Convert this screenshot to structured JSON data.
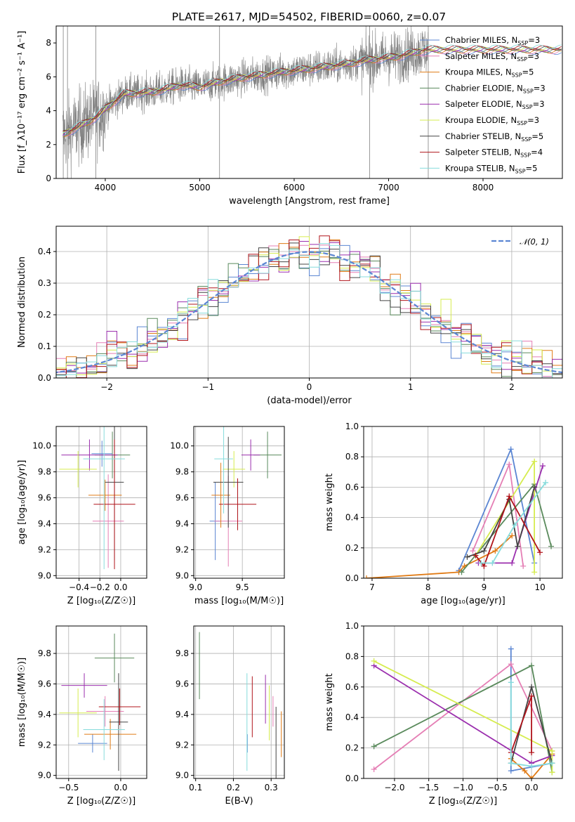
{
  "figure_title": "PLATE=2617, MJD=54502, FIBERID=0060, z=0.07",
  "models": [
    {
      "name": "Chabrier MILES",
      "nssp": "3",
      "color": "#5b86d3"
    },
    {
      "name": "Salpeter MILES",
      "nssp": "3",
      "color": "#e57fb5"
    },
    {
      "name": "Kroupa MILES",
      "nssp": "5",
      "color": "#e07b16"
    },
    {
      "name": "Chabrier ELODIE",
      "nssp": "3",
      "color": "#5a8a5c"
    },
    {
      "name": "Salpeter ELODIE",
      "nssp": "3",
      "color": "#9b2fae"
    },
    {
      "name": "Kroupa ELODIE",
      "nssp": "3",
      "color": "#d6ec4f"
    },
    {
      "name": "Chabrier STELIB",
      "nssp": "5",
      "color": "#444444"
    },
    {
      "name": "Salpeter STELIB",
      "nssp": "4",
      "color": "#b0141b"
    },
    {
      "name": "Kroupa STELIB",
      "nssp": "5",
      "color": "#86dcdc"
    }
  ],
  "chart_data": [
    {
      "id": "spectrum",
      "type": "line",
      "xlabel": "wavelength [Angstrom, rest frame]",
      "ylabel": "Flux [f_λ10⁻¹⁷ erg cm⁻² s⁻¹ A⁻¹]",
      "xlim": [
        3480,
        8840
      ],
      "ylim": [
        0,
        9
      ],
      "xticks": [
        4000,
        5000,
        6000,
        7000,
        8000
      ],
      "yticks": [
        0,
        2,
        4,
        6,
        8
      ],
      "observed_color": "#808080",
      "continuum": [
        [
          3550,
          2.6
        ],
        [
          3700,
          3.0
        ],
        [
          3900,
          3.6
        ],
        [
          4000,
          4.1
        ],
        [
          4200,
          5.0
        ],
        [
          4500,
          5.1
        ],
        [
          4800,
          5.5
        ],
        [
          5000,
          5.4
        ],
        [
          5200,
          5.7
        ],
        [
          5500,
          6.0
        ],
        [
          5900,
          6.3
        ],
        [
          6200,
          6.5
        ],
        [
          6500,
          6.7
        ],
        [
          6800,
          7.0
        ],
        [
          7100,
          7.2
        ],
        [
          7400,
          7.6
        ]
      ],
      "grid": false,
      "legend_loc": "right"
    },
    {
      "id": "residuals",
      "type": "histogram",
      "xlabel": "(data-model)/error",
      "ylabel": "Normed distribution",
      "xlim": [
        -2.5,
        2.5
      ],
      "ylim": [
        0,
        0.48
      ],
      "xticks": [
        -2,
        -1,
        0,
        1,
        2
      ],
      "yticks": [
        0.0,
        0.1,
        0.2,
        0.3,
        0.4
      ],
      "gaussian_label": "𝒩(0, 1)",
      "gaussian_color": "#5b86d3",
      "bin_width": 0.1,
      "grid": true,
      "legend_loc": "upper-right"
    },
    {
      "id": "age_vs_Z",
      "type": "errorbar",
      "xlabel": "Z [log₁₀(Z/Z☉)]",
      "ylabel": "age  [log₁₀(age/yr)]",
      "xlim": [
        -0.62,
        0.25
      ],
      "ylim": [
        8.98,
        10.15
      ],
      "xticks": [
        -0.4,
        -0.2,
        0.0
      ],
      "yticks": [
        9.0,
        9.2,
        9.4,
        9.6,
        9.8,
        10.0
      ],
      "points": [
        {
          "model": 0,
          "x": -0.18,
          "xerr": 0.1,
          "y": 9.94,
          "yerr": 0.1
        },
        {
          "model": 1,
          "x": -0.12,
          "xerr": 0.15,
          "y": 9.42,
          "yerr": 0.36
        },
        {
          "model": 2,
          "x": -0.15,
          "xerr": 0.16,
          "y": 9.62,
          "yerr": 0.12
        },
        {
          "model": 3,
          "x": -0.08,
          "xerr": 0.17,
          "y": 9.93,
          "yerr": 0.18
        },
        {
          "model": 4,
          "x": -0.3,
          "xerr": 0.27,
          "y": 9.93,
          "yerr": 0.12
        },
        {
          "model": 5,
          "x": -0.41,
          "xerr": 0.18,
          "y": 9.82,
          "yerr": 0.14
        },
        {
          "model": 6,
          "x": -0.06,
          "xerr": 0.09,
          "y": 9.72,
          "yerr": 0.6
        },
        {
          "model": 7,
          "x": -0.06,
          "xerr": 0.2,
          "y": 9.55,
          "yerr": 0.5
        },
        {
          "model": 8,
          "x": -0.16,
          "xerr": 0.2,
          "y": 9.9,
          "yerr": 0.85
        }
      ],
      "grid": true
    },
    {
      "id": "age_vs_mass",
      "type": "errorbar",
      "xlabel": "mass [log₁₀(M/M☉)]",
      "ylabel": "",
      "xlim": [
        8.98,
        9.95
      ],
      "ylim": [
        8.98,
        10.15
      ],
      "xticks": [
        9.0,
        9.5
      ],
      "yticks": [
        9.0,
        9.2,
        9.4,
        9.6,
        9.8,
        10.0
      ],
      "points": [
        {
          "model": 0,
          "x": 9.21,
          "xerr": 0.06,
          "y": 9.42,
          "yerr": 0.3
        },
        {
          "model": 1,
          "x": 9.35,
          "xerr": 0.15,
          "y": 9.42,
          "yerr": 0.35
        },
        {
          "model": 2,
          "x": 9.27,
          "xerr": 0.1,
          "y": 9.62,
          "yerr": 0.25
        },
        {
          "model": 3,
          "x": 9.77,
          "xerr": 0.15,
          "y": 9.93,
          "yerr": 0.18
        },
        {
          "model": 4,
          "x": 9.59,
          "xerr": 0.1,
          "y": 9.93,
          "yerr": 0.12
        },
        {
          "model": 5,
          "x": 9.41,
          "xerr": 0.12,
          "y": 9.82,
          "yerr": 0.14
        },
        {
          "model": 6,
          "x": 9.35,
          "xerr": 0.16,
          "y": 9.72,
          "yerr": 0.35
        },
        {
          "model": 7,
          "x": 9.45,
          "xerr": 0.2,
          "y": 9.55,
          "yerr": 0.2
        },
        {
          "model": 8,
          "x": 9.3,
          "xerr": 0.1,
          "y": 9.9,
          "yerr": 0.42
        }
      ],
      "grid": true
    },
    {
      "id": "weight_vs_age",
      "type": "line",
      "xlabel": "age  [log₁₀(age/yr)]",
      "ylabel": "mass weight",
      "xlim": [
        6.85,
        10.4
      ],
      "ylim": [
        0,
        1
      ],
      "xticks": [
        7,
        8,
        9,
        10
      ],
      "yticks": [
        0.0,
        0.2,
        0.4,
        0.6,
        0.8,
        1.0
      ],
      "series": [
        {
          "model": 0,
          "points": [
            [
              8.55,
              0.05
            ],
            [
              9.48,
              0.85
            ],
            [
              9.9,
              0.1
            ]
          ]
        },
        {
          "model": 1,
          "points": [
            [
              8.8,
              0.18
            ],
            [
              9.45,
              0.75
            ],
            [
              9.7,
              0.08
            ]
          ]
        },
        {
          "model": 2,
          "points": [
            [
              6.9,
              0.0
            ],
            [
              8.55,
              0.04
            ],
            [
              8.65,
              0.08
            ],
            [
              9.2,
              0.18
            ],
            [
              9.5,
              0.28
            ]
          ]
        },
        {
          "model": 3,
          "points": [
            [
              8.6,
              0.04
            ],
            [
              9.9,
              0.62
            ],
            [
              10.2,
              0.21
            ]
          ]
        },
        {
          "model": 4,
          "points": [
            [
              8.9,
              0.1
            ],
            [
              9.5,
              0.1
            ],
            [
              10.05,
              0.74
            ]
          ]
        },
        {
          "model": 5,
          "points": [
            [
              8.85,
              0.15
            ],
            [
              9.9,
              0.77
            ],
            [
              9.9,
              0.04
            ]
          ]
        },
        {
          "model": 6,
          "points": [
            [
              8.7,
              0.14
            ],
            [
              9.0,
              0.18
            ],
            [
              9.45,
              0.52
            ],
            [
              9.6,
              0.21
            ],
            [
              9.9,
              0.6
            ]
          ]
        },
        {
          "model": 7,
          "points": [
            [
              8.85,
              0.15
            ],
            [
              9.0,
              0.08
            ],
            [
              9.45,
              0.54
            ],
            [
              10.0,
              0.17
            ]
          ]
        },
        {
          "model": 8,
          "points": [
            [
              8.95,
              0.1
            ],
            [
              9.15,
              0.1
            ],
            [
              9.55,
              0.35
            ],
            [
              10.1,
              0.63
            ]
          ]
        }
      ],
      "grid": true
    },
    {
      "id": "mass_vs_Z",
      "type": "errorbar",
      "xlabel": "Z [log₁₀(Z/Z☉)]",
      "ylabel": "mass [log₁₀(M/M☉)]",
      "xlim": [
        -0.62,
        0.25
      ],
      "ylim": [
        8.98,
        9.98
      ],
      "xticks": [
        -0.5,
        0.0
      ],
      "yticks": [
        9.0,
        9.2,
        9.4,
        9.6,
        9.8
      ],
      "points": [
        {
          "model": 0,
          "x": -0.27,
          "xerr": 0.14,
          "y": 9.21,
          "yerr": 0.06
        },
        {
          "model": 1,
          "x": -0.15,
          "xerr": 0.18,
          "y": 9.42,
          "yerr": 0.1
        },
        {
          "model": 2,
          "x": -0.1,
          "xerr": 0.25,
          "y": 9.27,
          "yerr": 0.1
        },
        {
          "model": 3,
          "x": -0.06,
          "xerr": 0.19,
          "y": 9.77,
          "yerr": 0.16
        },
        {
          "model": 4,
          "x": -0.35,
          "xerr": 0.22,
          "y": 9.59,
          "yerr": 0.08
        },
        {
          "model": 5,
          "x": -0.41,
          "xerr": 0.18,
          "y": 9.41,
          "yerr": 0.16
        },
        {
          "model": 6,
          "x": -0.02,
          "xerr": 0.09,
          "y": 9.35,
          "yerr": 0.32
        },
        {
          "model": 7,
          "x": -0.01,
          "xerr": 0.2,
          "y": 9.45,
          "yerr": 0.12
        },
        {
          "model": 8,
          "x": -0.16,
          "xerr": 0.2,
          "y": 9.3,
          "yerr": 0.2
        }
      ],
      "grid": true
    },
    {
      "id": "mass_vs_ebv",
      "type": "errorbar",
      "xlabel": "E(B-V)",
      "ylabel": "",
      "xlim": [
        0.095,
        0.335
      ],
      "ylim": [
        8.98,
        9.98
      ],
      "xticks": [
        0.1,
        0.2,
        0.3
      ],
      "yticks": [
        9.0,
        9.2,
        9.4,
        9.6,
        9.8
      ],
      "points": [
        {
          "model": 0,
          "x": 0.237,
          "y": 9.21,
          "yerr": 0.06
        },
        {
          "model": 1,
          "x": 0.305,
          "y": 9.42,
          "yerr": 0.1
        },
        {
          "model": 2,
          "x": 0.327,
          "y": 9.27,
          "yerr": 0.15
        },
        {
          "model": 3,
          "x": 0.11,
          "y": 9.72,
          "yerr": 0.22
        },
        {
          "model": 4,
          "x": 0.285,
          "y": 9.5,
          "yerr": 0.16
        },
        {
          "model": 5,
          "x": 0.295,
          "y": 9.41,
          "yerr": 0.18
        },
        {
          "model": 6,
          "x": 0.313,
          "y": 9.2,
          "yerr": 0.25
        },
        {
          "model": 7,
          "x": 0.25,
          "y": 9.45,
          "yerr": 0.2
        },
        {
          "model": 8,
          "x": 0.236,
          "y": 9.35,
          "yerr": 0.32
        }
      ],
      "grid": true
    },
    {
      "id": "weight_vs_Z",
      "type": "line",
      "xlabel": "Z [log₁₀(Z/Z☉)]",
      "ylabel": "mass weight",
      "xlim": [
        -2.45,
        0.45
      ],
      "ylim": [
        0,
        1
      ],
      "xticks": [
        -2.0,
        -1.5,
        -1.0,
        -0.5,
        0.0
      ],
      "yticks": [
        0.0,
        0.2,
        0.4,
        0.6,
        0.8,
        1.0
      ],
      "series": [
        {
          "model": 0,
          "points": [
            [
              -0.3,
              0.85
            ],
            [
              -0.3,
              0.05
            ],
            [
              0.3,
              0.1
            ]
          ]
        },
        {
          "model": 1,
          "points": [
            [
              -2.3,
              0.06
            ],
            [
              -0.3,
              0.75
            ],
            [
              0.3,
              0.18
            ]
          ]
        },
        {
          "model": 2,
          "points": [
            [
              -0.3,
              0.13
            ],
            [
              -0.1,
              0.05
            ],
            [
              0.0,
              0.0
            ],
            [
              0.3,
              0.16
            ]
          ]
        },
        {
          "model": 3,
          "points": [
            [
              -2.3,
              0.21
            ],
            [
              0.0,
              0.74
            ],
            [
              0.3,
              0.04
            ]
          ]
        },
        {
          "model": 4,
          "points": [
            [
              -2.3,
              0.74
            ],
            [
              0.0,
              0.1
            ],
            [
              0.3,
              0.15
            ]
          ]
        },
        {
          "model": 5,
          "points": [
            [
              -2.3,
              0.77
            ],
            [
              0.3,
              0.18
            ],
            [
              0.3,
              0.04
            ]
          ]
        },
        {
          "model": 6,
          "points": [
            [
              -0.3,
              0.1
            ],
            [
              0.0,
              0.6
            ],
            [
              0.3,
              0.1
            ]
          ]
        },
        {
          "model": 7,
          "points": [
            [
              -0.3,
              0.17
            ],
            [
              0.0,
              0.54
            ],
            [
              0.0,
              0.17
            ]
          ]
        },
        {
          "model": 8,
          "points": [
            [
              -0.3,
              0.63
            ],
            [
              -0.3,
              0.1
            ],
            [
              0.0,
              0.08
            ],
            [
              0.3,
              0.1
            ]
          ]
        }
      ],
      "grid": true
    }
  ]
}
